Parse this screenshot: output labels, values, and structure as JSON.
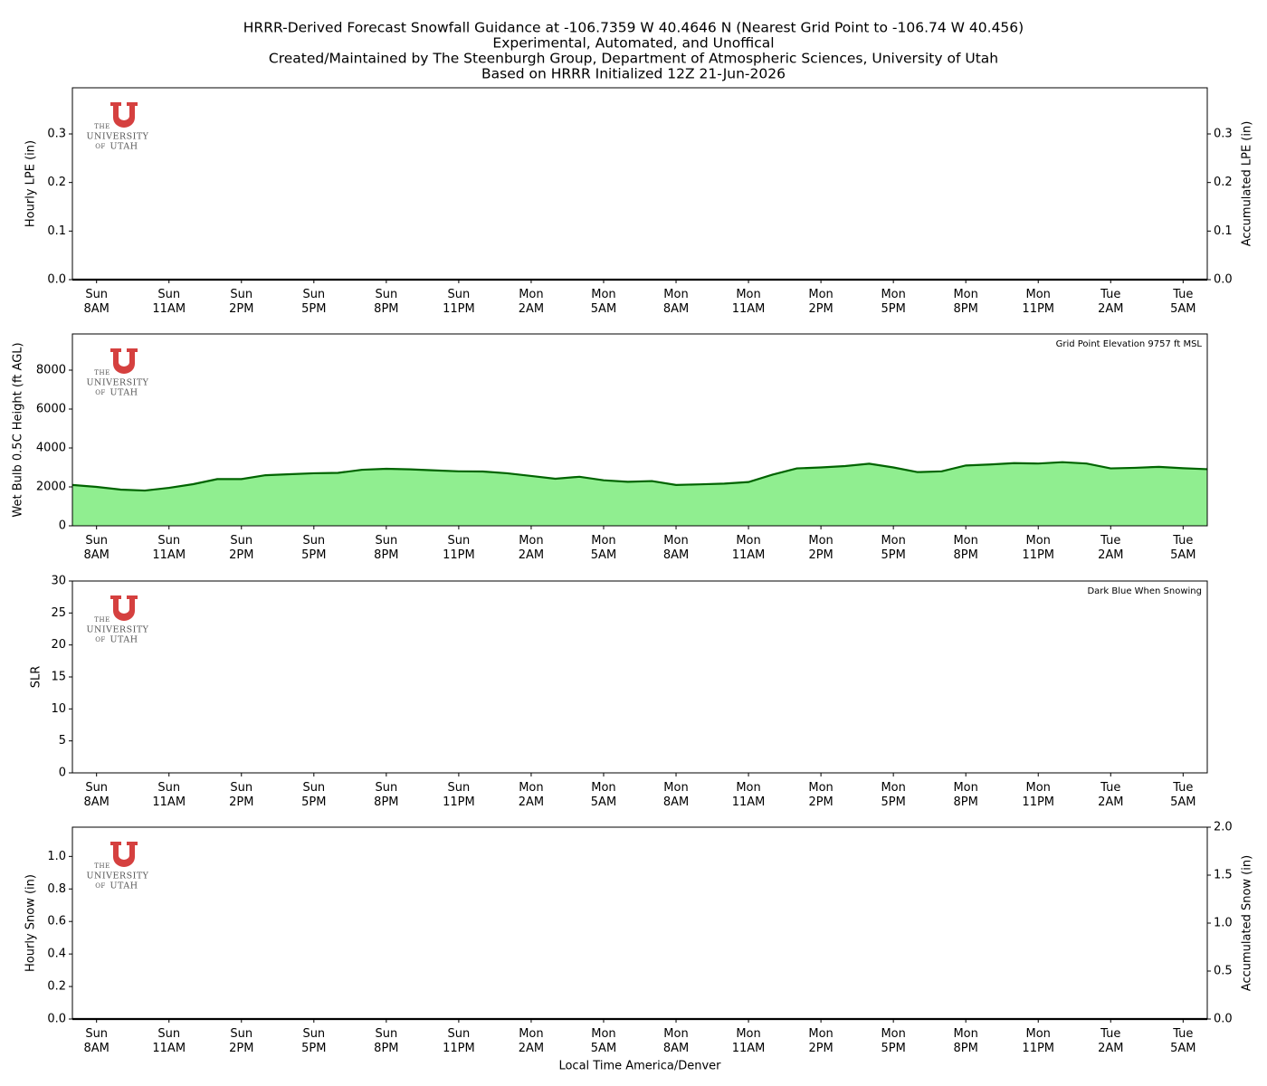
{
  "title": [
    "HRRR-Derived Forecast Snowfall Guidance at -106.7359 W 40.4646 N (Nearest Grid Point to -106.74 W 40.456)",
    "Experimental, Automated, and Unoffical",
    "Created/Maintained by The Steenburgh Group, Department of Atmospheric Sciences, University of Utah",
    "Based on HRRR Initialized 12Z 21-Jun-2026"
  ],
  "logo": [
    "THE",
    "UNIVERSITY",
    "OF",
    "UTAH"
  ],
  "chart_data": [
    {
      "type": "bar",
      "ylabel": "Hourly LPE (in)",
      "y2label": "Accumulated LPE (in)",
      "categories": [
        null,
        "Sun\n8AM",
        null,
        null,
        "Sun\n11AM",
        null,
        null,
        "Sun\n2PM",
        null,
        null,
        "Sun\n5PM",
        null,
        null,
        "Sun\n8PM",
        null,
        null,
        "Sun\n11PM",
        null,
        null,
        "Mon\n2AM",
        null,
        null,
        "Mon\n5AM",
        null,
        null,
        "Mon\n8AM",
        null,
        null,
        "Mon\n11AM",
        null,
        null,
        "Mon\n2PM",
        null,
        null,
        "Mon\n5PM",
        null,
        null,
        "Mon\n8PM",
        null,
        null,
        "Mon\n11PM",
        null,
        null,
        "Tue\n2AM",
        null,
        null,
        "Tue\n5AM",
        null
      ],
      "series": [
        {
          "type": "bar",
          "color": "#1f77b4",
          "values": [
            0,
            0,
            0,
            0,
            0,
            0,
            0,
            0,
            0,
            0,
            0,
            0,
            0,
            0,
            0,
            0,
            0,
            0,
            0,
            0,
            0,
            0,
            0,
            0,
            0,
            0,
            0,
            0,
            0,
            0,
            0,
            0,
            0,
            0,
            0,
            0,
            0,
            0,
            0,
            0,
            0,
            0,
            0,
            0,
            0,
            0,
            0,
            0
          ]
        },
        {
          "type": "line",
          "axis": "y2",
          "color": "#000000",
          "values": [
            0,
            0,
            0,
            0,
            0,
            0,
            0,
            0,
            0,
            0,
            0,
            0,
            0,
            0,
            0,
            0,
            0,
            0,
            0,
            0,
            0,
            0,
            0,
            0,
            0,
            0,
            0,
            0,
            0,
            0,
            0,
            0,
            0,
            0,
            0,
            0,
            0,
            0,
            0,
            0,
            0,
            0,
            0,
            0,
            0,
            0,
            0,
            0
          ]
        }
      ],
      "ylim": [
        0,
        0.395
      ],
      "yticks": [
        {
          "value": 0,
          "label": "0.0"
        },
        0.1,
        0.2,
        0.3
      ],
      "y2lim": [
        0,
        0.395
      ],
      "y2ticks": [
        {
          "value": 0,
          "label": "0.0"
        },
        0.1,
        0.2,
        0.3
      ]
    },
    {
      "type": "area",
      "ylabel": "Wet Bulb 0.5C Height (ft AGL)",
      "annotation": "Grid Point Elevation 9757 ft MSL",
      "categories": [
        null,
        "Sun\n8AM",
        null,
        null,
        "Sun\n11AM",
        null,
        null,
        "Sun\n2PM",
        null,
        null,
        "Sun\n5PM",
        null,
        null,
        "Sun\n8PM",
        null,
        null,
        "Sun\n11PM",
        null,
        null,
        "Mon\n2AM",
        null,
        null,
        "Mon\n5AM",
        null,
        null,
        "Mon\n8AM",
        null,
        null,
        "Mon\n11AM",
        null,
        null,
        "Mon\n2PM",
        null,
        null,
        "Mon\n5PM",
        null,
        null,
        "Mon\n8PM",
        null,
        null,
        "Mon\n11PM",
        null,
        null,
        "Tue\n2AM",
        null,
        null,
        "Tue\n5AM",
        null
      ],
      "series": [
        {
          "type": "area",
          "color": "#006400",
          "fill": "#90ee90",
          "values": [
            2100,
            2000,
            1860,
            1810,
            1950,
            2140,
            2400,
            2400,
            2600,
            2650,
            2700,
            2720,
            2880,
            2930,
            2900,
            2850,
            2800,
            2790,
            2700,
            2560,
            2420,
            2520,
            2340,
            2260,
            2300,
            2100,
            2130,
            2170,
            2250,
            2630,
            2950,
            3000,
            3070,
            3190,
            3000,
            2760,
            2800,
            3100,
            3150,
            3220,
            3200,
            3270,
            3200,
            2950,
            2980,
            3030,
            2960,
            2910
          ]
        }
      ],
      "ylim": [
        0,
        9860
      ],
      "yticks": [
        0,
        2000,
        4000,
        6000,
        8000
      ]
    },
    {
      "type": "line",
      "ylabel": "SLR",
      "annotation": "Dark Blue When Snowing",
      "categories": [
        null,
        "Sun\n8AM",
        null,
        null,
        "Sun\n11AM",
        null,
        null,
        "Sun\n2PM",
        null,
        null,
        "Sun\n5PM",
        null,
        null,
        "Sun\n8PM",
        null,
        null,
        "Sun\n11PM",
        null,
        null,
        "Mon\n2AM",
        null,
        null,
        "Mon\n5AM",
        null,
        null,
        "Mon\n8AM",
        null,
        null,
        "Mon\n11AM",
        null,
        null,
        "Mon\n2PM",
        null,
        null,
        "Mon\n5PM",
        null,
        null,
        "Mon\n8PM",
        null,
        null,
        "Mon\n11PM",
        null,
        null,
        "Tue\n2AM",
        null,
        null,
        "Tue\n5AM",
        null
      ],
      "series": [
        {
          "type": "line",
          "color": "#00008b",
          "values": [
            null,
            null,
            null,
            null,
            null,
            null,
            null,
            null,
            null,
            null,
            null,
            null,
            null,
            null,
            null,
            null,
            null,
            null,
            null,
            null,
            null,
            null,
            null,
            null,
            null,
            null,
            null,
            null,
            null,
            null,
            null,
            null,
            null,
            null,
            null,
            null,
            null,
            null,
            null,
            null,
            null,
            null,
            null,
            null,
            null,
            null,
            null,
            null
          ]
        }
      ],
      "ylim": [
        0,
        30
      ],
      "yticks": [
        0,
        5,
        10,
        15,
        20,
        25,
        30
      ]
    },
    {
      "type": "bar",
      "ylabel": "Hourly Snow (in)",
      "y2label": "Accumulated Snow (in)",
      "xlabel": "Local Time America/Denver",
      "categories": [
        null,
        "Sun\n8AM",
        null,
        null,
        "Sun\n11AM",
        null,
        null,
        "Sun\n2PM",
        null,
        null,
        "Sun\n5PM",
        null,
        null,
        "Sun\n8PM",
        null,
        null,
        "Sun\n11PM",
        null,
        null,
        "Mon\n2AM",
        null,
        null,
        "Mon\n5AM",
        null,
        null,
        "Mon\n8AM",
        null,
        null,
        "Mon\n11AM",
        null,
        null,
        "Mon\n2PM",
        null,
        null,
        "Mon\n5PM",
        null,
        null,
        "Mon\n8PM",
        null,
        null,
        "Mon\n11PM",
        null,
        null,
        "Tue\n2AM",
        null,
        null,
        "Tue\n5AM",
        null
      ],
      "series": [
        {
          "type": "bar",
          "color": "#1f77b4",
          "values": [
            0,
            0,
            0,
            0,
            0,
            0,
            0,
            0,
            0,
            0,
            0,
            0,
            0,
            0,
            0,
            0,
            0,
            0,
            0,
            0,
            0,
            0,
            0,
            0,
            0,
            0,
            0,
            0,
            0,
            0,
            0,
            0,
            0,
            0,
            0,
            0,
            0,
            0,
            0,
            0,
            0,
            0,
            0,
            0,
            0,
            0,
            0,
            0
          ]
        },
        {
          "type": "line",
          "axis": "y2",
          "color": "#000000",
          "values": [
            0,
            0,
            0,
            0,
            0,
            0,
            0,
            0,
            0,
            0,
            0,
            0,
            0,
            0,
            0,
            0,
            0,
            0,
            0,
            0,
            0,
            0,
            0,
            0,
            0,
            0,
            0,
            0,
            0,
            0,
            0,
            0,
            0,
            0,
            0,
            0,
            0,
            0,
            0,
            0,
            0,
            0,
            0,
            0,
            0,
            0,
            0,
            0
          ]
        }
      ],
      "ylim": [
        0,
        1.18
      ],
      "yticks": [
        {
          "value": 0,
          "label": "0.0"
        },
        0.2,
        0.4,
        0.6,
        0.8,
        {
          "value": 1,
          "label": "1.0"
        }
      ],
      "y2lim": [
        0,
        2
      ],
      "y2ticks": [
        {
          "value": 0,
          "label": "0.0"
        },
        0.5,
        {
          "value": 1,
          "label": "1.0"
        },
        1.5,
        {
          "value": 2,
          "label": "2.0"
        }
      ]
    }
  ]
}
